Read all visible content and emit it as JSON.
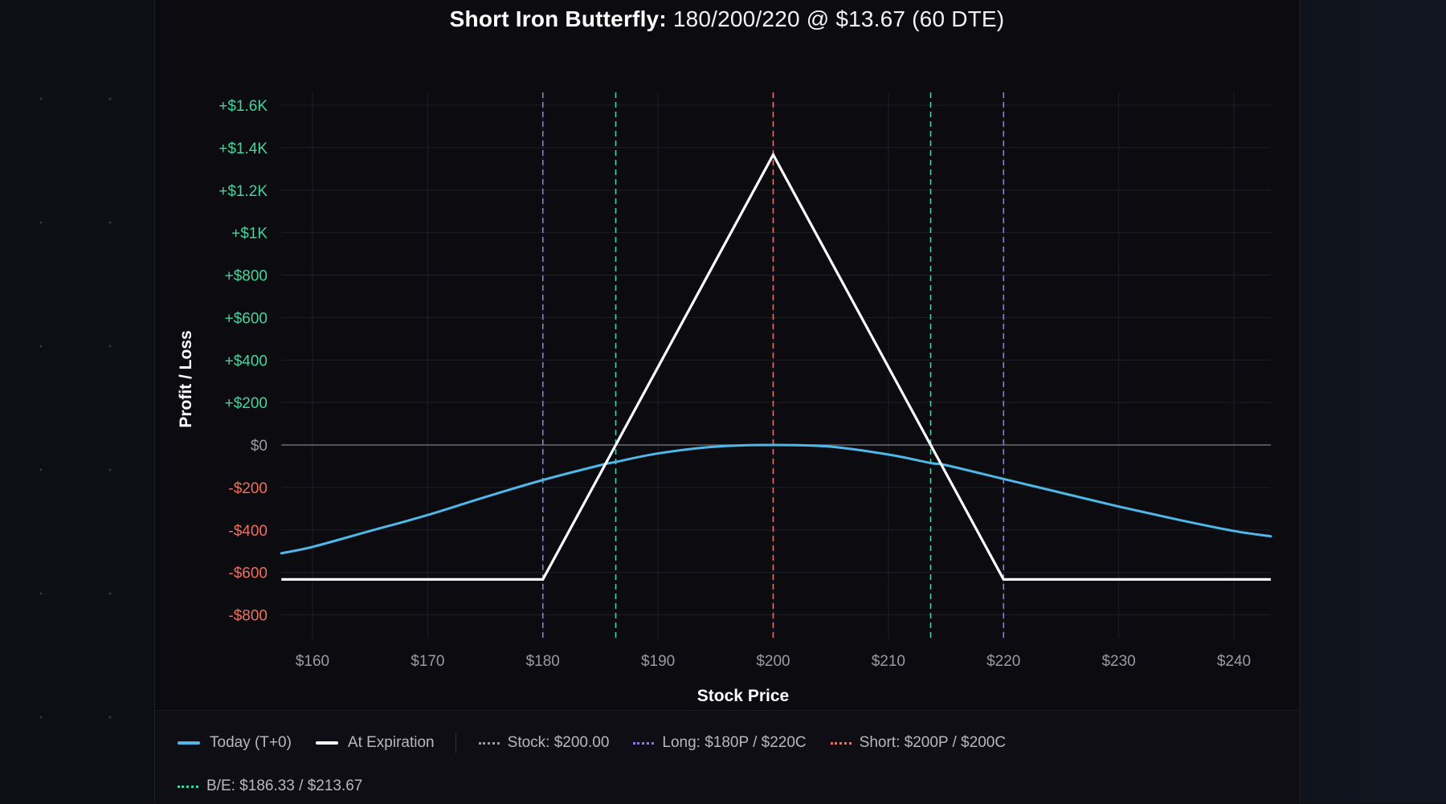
{
  "title": {
    "strategy": "Short Iron Butterfly:",
    "details": "180/200/220 @ $13.67 (60 DTE)"
  },
  "axes": {
    "xlabel": "Stock Price",
    "ylabel": "Profit / Loss",
    "x_ticks": [
      "$160",
      "$170",
      "$180",
      "$190",
      "$200",
      "$210",
      "$220",
      "$230",
      "$240"
    ],
    "y_ticks": [
      "+$1.6K",
      "+$1.4K",
      "+$1.2K",
      "+$1K",
      "+$800",
      "+$600",
      "+$400",
      "+$200",
      "$0",
      "-$200",
      "-$400",
      "-$600",
      "-$800"
    ]
  },
  "legend": {
    "today": "Today (T+0)",
    "expiration": "At Expiration",
    "stock": "Stock: $200.00",
    "long": "Long: $180P / $220C",
    "short": "Short: $200P / $200C",
    "breakeven": "B/E: $186.33 / $213.67"
  },
  "colors": {
    "today": "#4fb8e8",
    "expiration": "#ffffff",
    "stock": "#9a9aa2",
    "long": "#8a7cf0",
    "short": "#ef6f5f",
    "breakeven": "#3fd3a0",
    "positive_tick": "#45d49b",
    "negative_tick": "#ef6f5f",
    "zero_tick": "#9a9aa2"
  },
  "chart_data": {
    "type": "line",
    "title": "Short Iron Butterfly: 180/200/220 @ $13.67 (60 DTE)",
    "xlabel": "Stock Price",
    "ylabel": "Profit / Loss",
    "xlim": [
      157.3,
      243.2
    ],
    "ylim": [
      -870,
      1730
    ],
    "x_tick_values": [
      160,
      170,
      180,
      190,
      200,
      210,
      220,
      230,
      240
    ],
    "y_tick_values": [
      1600,
      1400,
      1200,
      1000,
      800,
      600,
      400,
      200,
      0,
      -200,
      -400,
      -600,
      -800
    ],
    "grid": true,
    "legend_position": "bottom",
    "series": [
      {
        "name": "Today (T+0)",
        "x": [
          157.3,
          160,
          165,
          170,
          175,
          180,
          185,
          186.33,
          190,
          195,
          200,
          205,
          210,
          213.67,
          215,
          220,
          225,
          230,
          235,
          240,
          243.2
        ],
        "y": [
          -510,
          -480,
          -405,
          -330,
          -245,
          -165,
          -95,
          -80,
          -40,
          -8,
          0,
          -8,
          -45,
          -85,
          -95,
          -160,
          -225,
          -290,
          -350,
          -405,
          -430
        ]
      },
      {
        "name": "At Expiration",
        "x": [
          157.3,
          180,
          186.33,
          200,
          213.67,
          220,
          243.2
        ],
        "y": [
          -633,
          -633,
          0,
          1367,
          0,
          -633,
          -633
        ]
      }
    ],
    "vertical_lines": [
      {
        "label": "Long: $180P / $220C",
        "x": 180,
        "style": "dashed",
        "color": "#8a7cf0"
      },
      {
        "label": "Long: $180P / $220C",
        "x": 220,
        "style": "dashed",
        "color": "#8a7cf0"
      },
      {
        "label": "B/E",
        "x": 186.33,
        "style": "dashed",
        "color": "#3fd3a0"
      },
      {
        "label": "B/E",
        "x": 213.67,
        "style": "dashed",
        "color": "#3fd3a0"
      },
      {
        "label": "Short: $200P / $200C / Stock: $200.00",
        "x": 200,
        "style": "dashed",
        "color": "#ef6f5f"
      }
    ],
    "annotations": {
      "max_profit": 1367,
      "max_loss": -633,
      "breakevens": [
        186.33,
        213.67
      ],
      "stock_price": 200.0
    }
  }
}
